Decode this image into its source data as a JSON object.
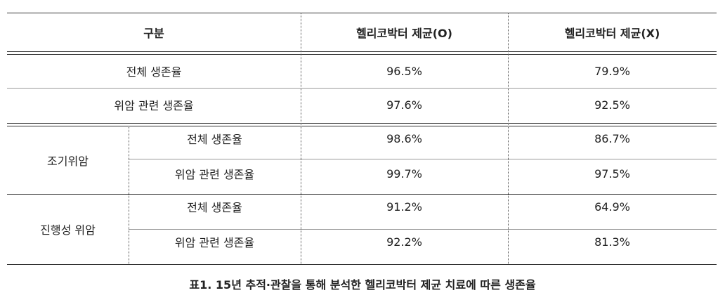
{
  "table": {
    "header": [
      "구분",
      "헬리코박터 제균(O)",
      "헬리코박터 제균(X)"
    ],
    "rows": [
      {
        "label": "전체 생존율",
        "values": [
          "96.5%",
          "79.9%"
        ]
      },
      {
        "label": "위암 관련 생존율",
        "values": [
          "97.6%",
          "92.5%"
        ]
      }
    ],
    "groups": [
      {
        "label": "조기위암",
        "rows": [
          {
            "label": "전체 생존율",
            "values": [
              "98.6%",
              "86.7%"
            ]
          },
          {
            "label": "위암 관련 생존율",
            "values": [
              "99.7%",
              "97.5%"
            ]
          }
        ]
      },
      {
        "label": "진행성 위암",
        "rows": [
          {
            "label": "전체 생존율",
            "values": [
              "91.2%",
              "64.9%"
            ]
          },
          {
            "label": "위암 관련 생존율",
            "values": [
              "92.2%",
              "81.3%"
            ]
          }
        ]
      }
    ]
  },
  "caption": "표1. 15년 추적·관찰을 통해 분석한 헬리코박터 제균 치료에 따른 생존율"
}
